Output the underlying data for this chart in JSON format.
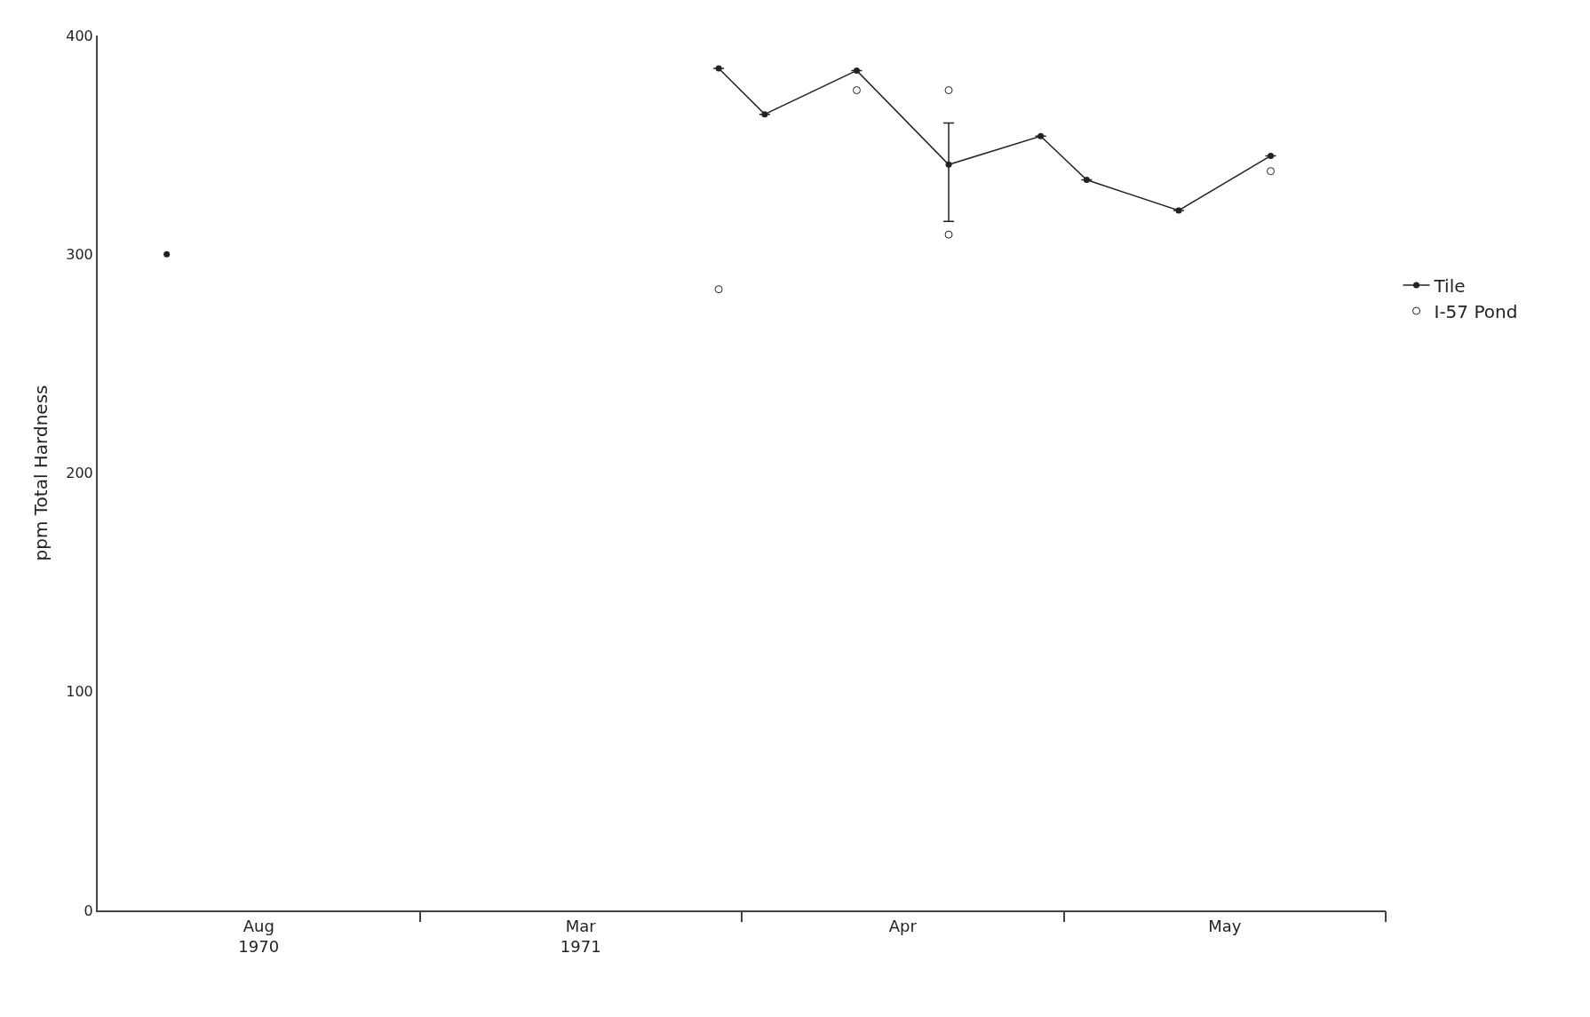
{
  "chart_data": {
    "type": "line",
    "ylabel": "ppm Total Hardness",
    "categories": [
      null,
      null,
      null,
      "Aug\n1970",
      null,
      null,
      null,
      null,
      null,
      null,
      "Mar\n1971",
      null,
      null,
      null,
      null,
      null,
      null,
      "Apr",
      null,
      null,
      null,
      null,
      null,
      null,
      "May",
      null,
      null,
      null
    ],
    "ylim": [
      0,
      400
    ],
    "yticks": [
      0,
      100,
      200,
      300,
      400
    ],
    "series": [
      {
        "name": "Tile",
        "color": "#222222",
        "marker": "circle",
        "values": [
          null,
          null,
          null,
          null,
          null,
          null,
          null,
          null,
          null,
          null,
          null,
          null,
          null,
          385,
          364,
          null,
          384,
          null,
          341,
          null,
          354,
          334,
          null,
          320,
          null,
          345,
          null,
          null
        ],
        "errors": [
          null,
          null,
          null,
          null,
          null,
          null,
          null,
          null,
          null,
          null,
          null,
          null,
          null,
          null,
          null,
          null,
          null,
          null,
          [
            315,
            360
          ],
          null,
          null,
          null,
          null,
          null,
          null,
          null,
          null,
          null
        ]
      },
      {
        "type": "scatter",
        "color": "#222222",
        "marker": "circle",
        "values": [
          null,
          300,
          null,
          null,
          null,
          null,
          null,
          null,
          null,
          null,
          null,
          null,
          null,
          null,
          null,
          null,
          null,
          null,
          null,
          null,
          null,
          null,
          null,
          null,
          null,
          null,
          null,
          null
        ]
      },
      {
        "name": "I-57 Pond",
        "type": "scatter",
        "color": "#222222",
        "marker": "circle-open",
        "values": [
          null,
          null,
          null,
          null,
          null,
          null,
          null,
          null,
          null,
          null,
          null,
          null,
          null,
          284,
          null,
          null,
          375,
          null,
          375,
          null,
          null,
          null,
          null,
          null,
          null,
          338,
          null,
          null
        ]
      },
      {
        "type": "scatter",
        "color": "#222222",
        "marker": "circle-open",
        "values": [
          null,
          null,
          null,
          null,
          null,
          null,
          null,
          null,
          null,
          null,
          null,
          null,
          null,
          null,
          null,
          null,
          null,
          null,
          309,
          null,
          null,
          null,
          null,
          null,
          null,
          null,
          null,
          null
        ]
      }
    ],
    "legend": "right"
  }
}
